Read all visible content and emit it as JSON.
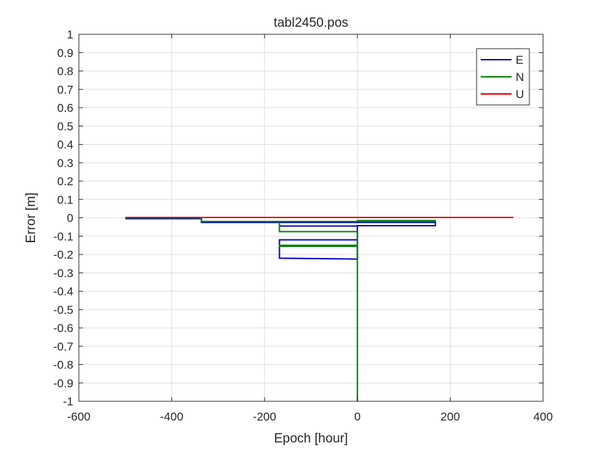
{
  "chart_data": {
    "type": "line",
    "title": "tabl2450.pos",
    "xlabel": "Epoch [hour]",
    "ylabel": "Error [m]",
    "xlim": [
      -600,
      400
    ],
    "ylim": [
      -1,
      1
    ],
    "xticks": [
      -600,
      -400,
      -200,
      0,
      200,
      400
    ],
    "xtick_labels": [
      "-600",
      "-400",
      "-200",
      "0",
      "200",
      "400"
    ],
    "yticks": [
      -1,
      -0.9,
      -0.8,
      -0.7,
      -0.6,
      -0.5,
      -0.4,
      -0.3,
      -0.2,
      -0.1,
      0,
      0.1,
      0.2,
      0.3,
      0.4,
      0.5,
      0.6,
      0.7,
      0.8,
      0.9,
      1
    ],
    "ytick_labels": [
      "-1",
      "-0.9",
      "-0.8",
      "-0.7",
      "-0.6",
      "-0.5",
      "-0.4",
      "-0.3",
      "-0.2",
      "-0.1",
      "0",
      "0.1",
      "0.2",
      "0.3",
      "0.4",
      "0.5",
      "0.6",
      "0.7",
      "0.8",
      "0.9",
      "1"
    ],
    "grid": true,
    "legend": {
      "placement": "top-right",
      "entries": [
        "E",
        "N",
        "U"
      ]
    },
    "series": [
      {
        "name": "E",
        "color": "#0000cc",
        "x": [
          -500,
          -336,
          -336,
          168,
          168,
          0,
          0,
          -168,
          -168,
          0,
          0,
          -168
        ],
        "y": [
          -0.005,
          -0.005,
          -0.025,
          -0.025,
          -0.043,
          -0.043,
          -0.12,
          -0.12,
          -0.22,
          -0.225,
          -0.045,
          -0.045
        ]
      },
      {
        "name": "N",
        "color": "#008000",
        "x": [
          -500,
          -336,
          -336,
          168,
          168,
          0,
          0,
          -168,
          -168,
          0,
          0,
          -168,
          -168,
          0,
          0
        ],
        "y": [
          0,
          0,
          -0.02,
          -0.02,
          -0.015,
          -0.015,
          -0.02,
          -0.02,
          -0.075,
          -0.075,
          -0.155,
          -0.155,
          -0.15,
          -0.15,
          -1
        ]
      },
      {
        "name": "U",
        "color": "#e00000",
        "x": [
          -500,
          336
        ],
        "y": [
          0.002,
          0.002
        ]
      }
    ]
  }
}
